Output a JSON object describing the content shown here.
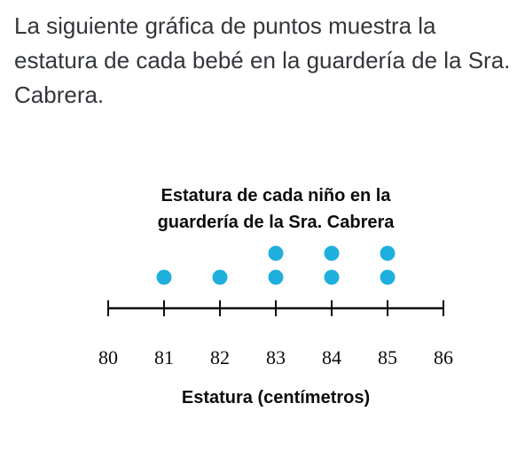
{
  "question": {
    "text": "La siguiente gráfica de puntos muestra la estatura de cada bebé en la guardería de la Sra. Cabrera."
  },
  "chart_data": {
    "type": "scatter",
    "subtype": "dot-plot",
    "title_lines": [
      "Estatura de cada niño en la",
      "guardería de la Sra. Cabrera"
    ],
    "xlabel": "Estatura (centímetros)",
    "ylabel": "",
    "xlim": [
      80,
      86
    ],
    "ticks": [
      80,
      81,
      82,
      83,
      84,
      85,
      86
    ],
    "counts": [
      {
        "x": 81,
        "count": 1
      },
      {
        "x": 82,
        "count": 1
      },
      {
        "x": 83,
        "count": 2
      },
      {
        "x": 84,
        "count": 2
      },
      {
        "x": 85,
        "count": 2
      }
    ],
    "dot_color": "#1fafdc",
    "axis_color": "#0b0c0d",
    "grid": false
  }
}
